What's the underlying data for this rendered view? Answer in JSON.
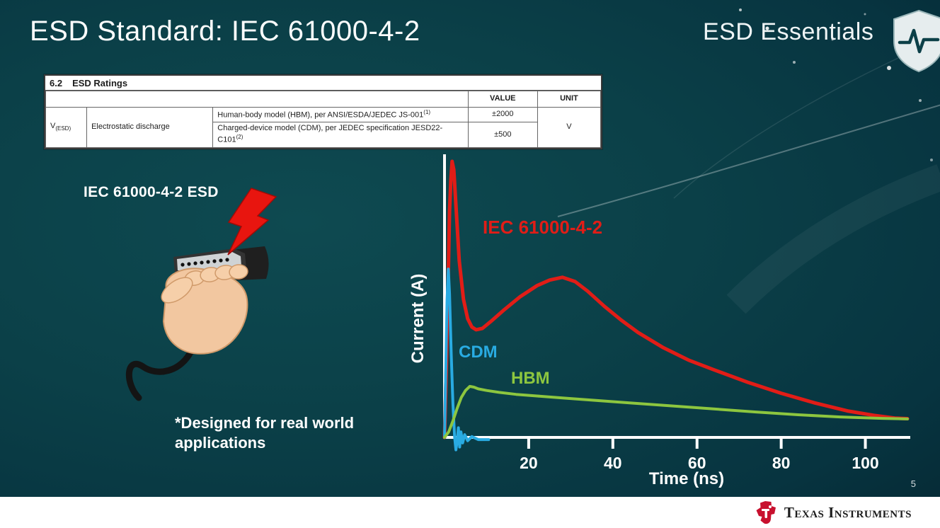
{
  "slide": {
    "title": "ESD Standard: IEC 61000-4-2",
    "series_label": "ESD Essentials",
    "illustration_label": "IEC 61000-4-2 ESD",
    "footnote": "*Designed for real world applications",
    "page_number": "5"
  },
  "ratings_table": {
    "caption_number": "6.2",
    "caption_text": "ESD Ratings",
    "headers": {
      "value": "VALUE",
      "unit": "UNIT"
    },
    "symbol_base": "V",
    "symbol_sub": "(ESD)",
    "parameter": "Electrostatic discharge",
    "rows": [
      {
        "desc": "Human-body model (HBM), per ANSI/ESDA/JEDEC JS-001",
        "sup": "(1)",
        "value": "±2000"
      },
      {
        "desc": "Charged-device model (CDM), per JEDEC specification JESD22-C101",
        "sup": "(2)",
        "value": "±500"
      }
    ],
    "unit": "V"
  },
  "chart_data": {
    "type": "line",
    "title": "",
    "xlabel": "Time (ns)",
    "ylabel": "Current (A)",
    "xlim": [
      0,
      110
    ],
    "ylim": [
      0,
      100
    ],
    "x_ticks": [
      20,
      40,
      60,
      80,
      100
    ],
    "grid": false,
    "legend": "inline-labels",
    "axis_color": "#ffffff",
    "series": [
      {
        "name": "IEC 61000-4-2",
        "color": "#e11d17",
        "width": 5,
        "points": [
          [
            0,
            0
          ],
          [
            0.5,
            30
          ],
          [
            0.8,
            52
          ],
          [
            1.2,
            82
          ],
          [
            1.5,
            93
          ],
          [
            1.8,
            100
          ],
          [
            2.2,
            97
          ],
          [
            2.8,
            82
          ],
          [
            3.5,
            64
          ],
          [
            4.5,
            50
          ],
          [
            5.5,
            43
          ],
          [
            6.5,
            40
          ],
          [
            7.5,
            39
          ],
          [
            9,
            39.5
          ],
          [
            11,
            42
          ],
          [
            14,
            46
          ],
          [
            18,
            51
          ],
          [
            22,
            55
          ],
          [
            25,
            57
          ],
          [
            28,
            58
          ],
          [
            31,
            56.5
          ],
          [
            34,
            53
          ],
          [
            38,
            47.5
          ],
          [
            42,
            42.5
          ],
          [
            46,
            38
          ],
          [
            52,
            32.5
          ],
          [
            58,
            28
          ],
          [
            64,
            24.5
          ],
          [
            72,
            20
          ],
          [
            80,
            16
          ],
          [
            88,
            12.5
          ],
          [
            96,
            9.5
          ],
          [
            102,
            8
          ],
          [
            107,
            7
          ],
          [
            110,
            6.8
          ]
        ]
      },
      {
        "name": "CDM",
        "color": "#29abe2",
        "width": 4,
        "points": [
          [
            0,
            0
          ],
          [
            0.3,
            25
          ],
          [
            0.6,
            50
          ],
          [
            0.9,
            61
          ],
          [
            1.2,
            52
          ],
          [
            1.6,
            30
          ],
          [
            2,
            12
          ],
          [
            2.4,
            0
          ],
          [
            2.7,
            -4.5
          ],
          [
            3,
            -1.5
          ],
          [
            3.3,
            3.5
          ],
          [
            3.6,
            -3.5
          ],
          [
            3.9,
            2
          ],
          [
            4.3,
            -2
          ],
          [
            4.8,
            1
          ],
          [
            5.5,
            -1.2
          ],
          [
            6.5,
            0.3
          ],
          [
            8,
            -0.8
          ],
          [
            10.5,
            -0.8
          ]
        ]
      },
      {
        "name": "HBM",
        "color": "#8dc63f",
        "width": 4,
        "points": [
          [
            0,
            0
          ],
          [
            1,
            2
          ],
          [
            2,
            6
          ],
          [
            3,
            10.5
          ],
          [
            4,
            14.5
          ],
          [
            5,
            17
          ],
          [
            6,
            18.5
          ],
          [
            7,
            18.2
          ],
          [
            8,
            17.6
          ],
          [
            10,
            17
          ],
          [
            13,
            16.3
          ],
          [
            17,
            15.6
          ],
          [
            22,
            15
          ],
          [
            28,
            14.3
          ],
          [
            36,
            13.4
          ],
          [
            44,
            12.5
          ],
          [
            54,
            11.4
          ],
          [
            64,
            10.3
          ],
          [
            74,
            9.2
          ],
          [
            84,
            8.2
          ],
          [
            94,
            7.4
          ],
          [
            104,
            6.9
          ],
          [
            110,
            6.7
          ]
        ]
      }
    ]
  },
  "footer": {
    "brand": "Texas Instruments"
  }
}
